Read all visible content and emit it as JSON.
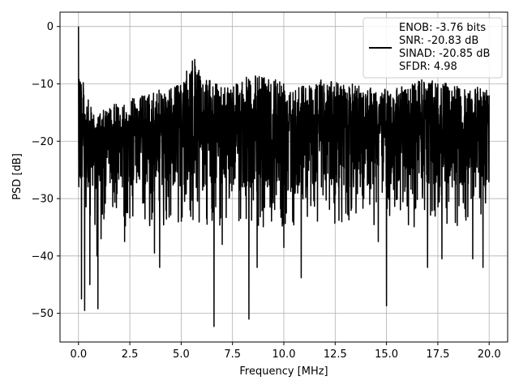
{
  "chart_data": {
    "type": "line",
    "xlabel": "Frequency [MHz]",
    "ylabel": "PSD [dB]",
    "xlim": [
      -0.9,
      20.9
    ],
    "ylim": [
      -55,
      2.5
    ],
    "xticks": [
      0.0,
      2.5,
      5.0,
      7.5,
      10.0,
      12.5,
      15.0,
      17.5,
      20.0
    ],
    "xtick_labels": [
      "0.0",
      "2.5",
      "5.0",
      "7.5",
      "10.0",
      "12.5",
      "15.0",
      "17.5",
      "20.0"
    ],
    "yticks": [
      0,
      -10,
      -20,
      -30,
      -40,
      -50
    ],
    "ytick_labels": [
      "0",
      "−10",
      "−20",
      "−30",
      "−40",
      "−50"
    ],
    "grid": true,
    "legend_position": "top-right",
    "series": [
      {
        "color": "#000000",
        "legend_lines": [
          "ENOB: -3.76 bits",
          "SNR: -20.83 dB",
          "SINAD: -20.85 dB",
          "SFDR: 4.98"
        ],
        "description": "noise-like PSD spectrum, 0 to 20 MHz",
        "peak": {
          "x": 0.0,
          "y": 0.0
        },
        "typical_band": [
          -28,
          -12
        ],
        "envelope_max": [
          [
            0.0,
            0.0
          ],
          [
            0.1,
            -7
          ],
          [
            0.3,
            -11
          ],
          [
            0.6,
            -14
          ],
          [
            1.0,
            -15
          ],
          [
            2.0,
            -13
          ],
          [
            3.0,
            -12
          ],
          [
            4.0,
            -11
          ],
          [
            5.0,
            -10
          ],
          [
            5.6,
            -5
          ],
          [
            6.0,
            -9
          ],
          [
            7.0,
            -10
          ],
          [
            8.0,
            -9
          ],
          [
            9.0,
            -8
          ],
          [
            10.0,
            -9
          ],
          [
            11.0,
            -10
          ],
          [
            12.0,
            -9
          ],
          [
            13.0,
            -10
          ],
          [
            14.0,
            -10
          ],
          [
            15.0,
            -11
          ],
          [
            16.0,
            -10
          ],
          [
            17.0,
            -9
          ],
          [
            18.0,
            -10
          ],
          [
            19.0,
            -11
          ],
          [
            20.0,
            -10
          ]
        ],
        "notable_dips": [
          {
            "x": 0.15,
            "y": -47.5
          },
          {
            "x": 0.3,
            "y": -49.5
          },
          {
            "x": 0.55,
            "y": -45
          },
          {
            "x": 0.95,
            "y": -49.2
          },
          {
            "x": 0.9,
            "y": -40
          },
          {
            "x": 1.1,
            "y": -37
          },
          {
            "x": 2.25,
            "y": -37.5
          },
          {
            "x": 3.7,
            "y": -39.5
          },
          {
            "x": 3.95,
            "y": -42
          },
          {
            "x": 6.6,
            "y": -52.3
          },
          {
            "x": 7.0,
            "y": -38
          },
          {
            "x": 8.3,
            "y": -51
          },
          {
            "x": 8.7,
            "y": -42
          },
          {
            "x": 10.0,
            "y": -38.5
          },
          {
            "x": 10.85,
            "y": -43.8
          },
          {
            "x": 14.6,
            "y": -37.5
          },
          {
            "x": 15.0,
            "y": -48.7
          },
          {
            "x": 17.0,
            "y": -42
          },
          {
            "x": 17.7,
            "y": -40.5
          },
          {
            "x": 19.2,
            "y": -40.5
          },
          {
            "x": 19.7,
            "y": -42
          }
        ]
      }
    ]
  }
}
